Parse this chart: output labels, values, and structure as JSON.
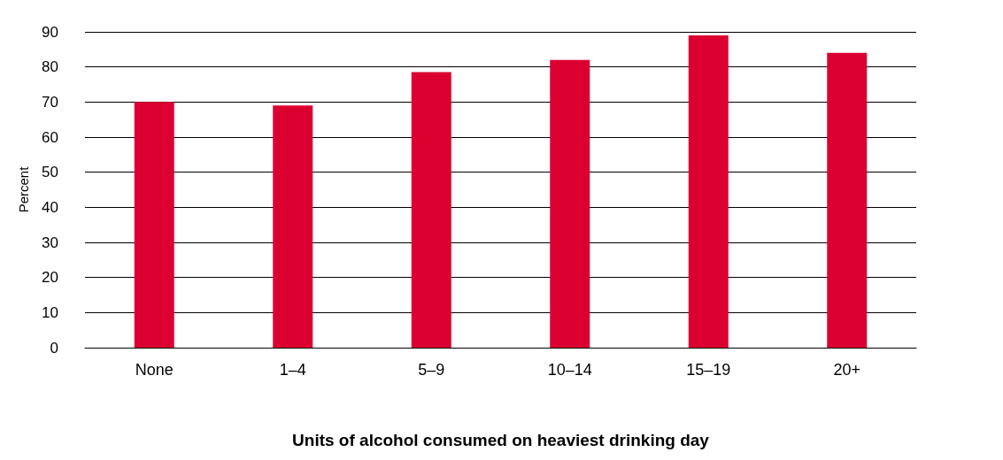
{
  "chart_data": {
    "type": "bar",
    "xlabel": "Units of alcohol consumed on heaviest drinking day",
    "ylabel": "Percent",
    "categories": [
      "None",
      "1–4",
      "5–9",
      "10–14",
      "15–19",
      "20+"
    ],
    "values": [
      70,
      69,
      78.5,
      82,
      89,
      84
    ],
    "color": "#dc0030",
    "ylim": [
      0,
      90
    ],
    "yticks": [
      0,
      10,
      20,
      30,
      40,
      50,
      60,
      70,
      80,
      90
    ],
    "grid": "y"
  }
}
